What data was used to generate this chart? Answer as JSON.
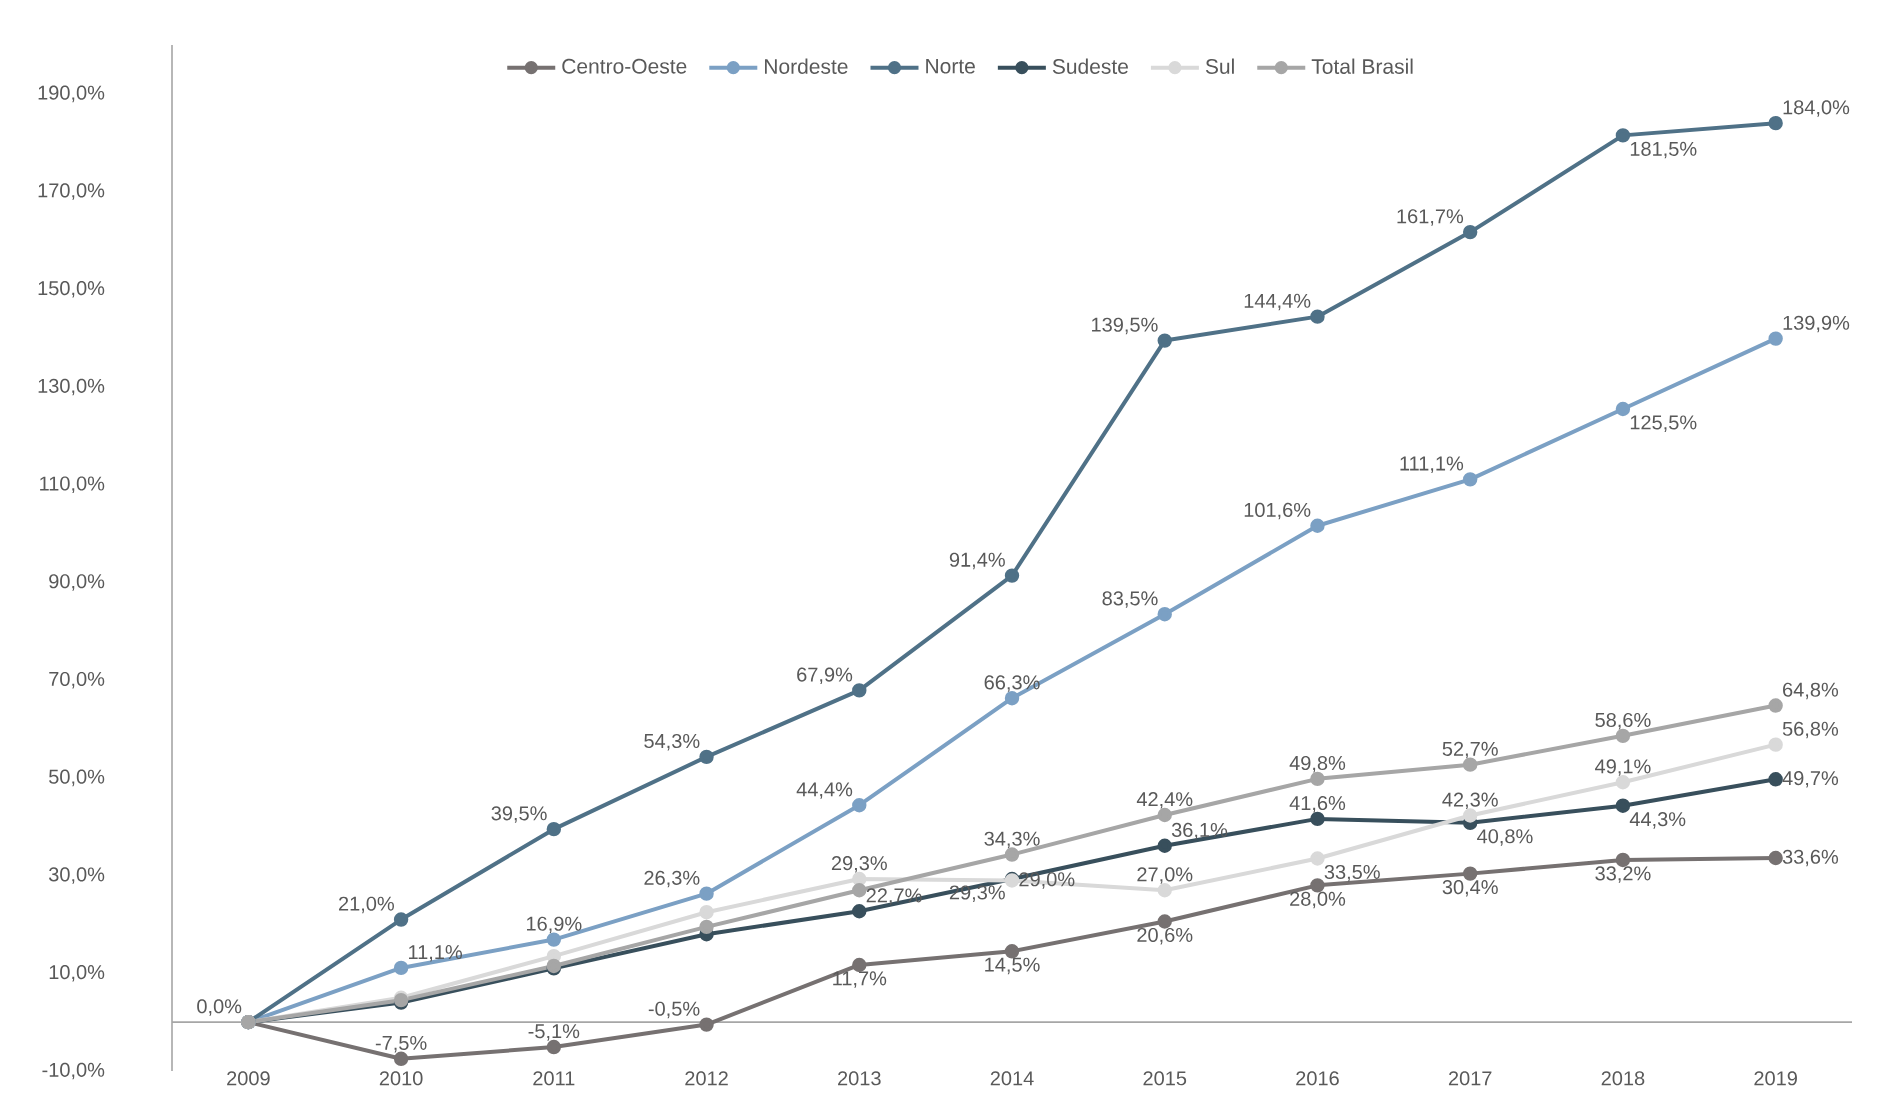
{
  "chart_data": {
    "type": "line",
    "categories": [
      "2009",
      "2010",
      "2011",
      "2012",
      "2013",
      "2014",
      "2015",
      "2016",
      "2017",
      "2018",
      "2019"
    ],
    "series": [
      {
        "name": "Centro-Oeste",
        "color": "#767171",
        "values": [
          0,
          -7.5,
          -5.1,
          -0.5,
          11.7,
          14.5,
          20.6,
          28.0,
          30.4,
          33.2,
          33.6
        ],
        "value_labels": [
          null,
          "-7,5%",
          "-5,1%",
          "-0,5%",
          "11,7%",
          "14,5%",
          "20,6%",
          "28,0%",
          "30,4%",
          "33,2%",
          "33,6%"
        ]
      },
      {
        "name": "Nordeste",
        "color": "#7ba0c4",
        "values": [
          0,
          11.1,
          16.9,
          26.3,
          44.4,
          66.3,
          83.5,
          101.6,
          111.1,
          125.5,
          139.9
        ],
        "value_labels": [
          null,
          "11,1%",
          "16,9%",
          "26,3%",
          "44,4%",
          "66,3%",
          "83,5%",
          "101,6%",
          "111,1%",
          "125,5%",
          "139,9%"
        ]
      },
      {
        "name": "Norte",
        "color": "#4f7187",
        "values": [
          0,
          21.0,
          39.5,
          54.3,
          67.9,
          91.4,
          139.5,
          144.4,
          161.7,
          181.5,
          184.0
        ],
        "value_labels": [
          "0,0%",
          "21,0%",
          "39,5%",
          "54,3%",
          "67,9%",
          "91,4%",
          "139,5%",
          "144,4%",
          "161,7%",
          "181,5%",
          "184,0%"
        ]
      },
      {
        "name": "Sudeste",
        "color": "#384f5c",
        "values": [
          0,
          4,
          11,
          18,
          22.7,
          29.3,
          36.1,
          41.6,
          40.8,
          44.3,
          49.7
        ],
        "value_labels": [
          null,
          null,
          null,
          null,
          "22,7%",
          "29,3%",
          "36,1%",
          "41,6%",
          "40,8%",
          "44,3%",
          "49,7%"
        ]
      },
      {
        "name": "Sul",
        "color": "#d9d9d9",
        "values": [
          0,
          5,
          13.5,
          22.5,
          29.3,
          29.0,
          27.0,
          33.5,
          42.3,
          49.1,
          56.8
        ],
        "value_labels": [
          null,
          null,
          null,
          null,
          "29,3%",
          "29,0%",
          "27,0%",
          "33,5%",
          "42,3%",
          "49,1%",
          "56,8%"
        ]
      },
      {
        "name": "Total Brasil",
        "color": "#a6a6a6",
        "values": [
          0,
          4.5,
          11.5,
          19.5,
          27,
          34.3,
          42.4,
          49.8,
          52.7,
          58.6,
          64.8
        ],
        "value_labels": [
          null,
          null,
          null,
          null,
          null,
          "34,3%",
          "42,4%",
          "49,8%",
          "52,7%",
          "58,6%",
          "64,8%"
        ]
      }
    ],
    "ylim": [
      -10,
      200
    ],
    "yticks": [
      {
        "value": -10,
        "label": "-10,0%"
      },
      {
        "value": 10,
        "label": "10,0%"
      },
      {
        "value": 30,
        "label": "30,0%"
      },
      {
        "value": 50,
        "label": "50,0%"
      },
      {
        "value": 70,
        "label": "70,0%"
      },
      {
        "value": 90,
        "label": "90,0%"
      },
      {
        "value": 110,
        "label": "110,0%"
      },
      {
        "value": 130,
        "label": "130,0%"
      },
      {
        "value": 150,
        "label": "150,0%"
      },
      {
        "value": 170,
        "label": "170,0%"
      },
      {
        "value": 190,
        "label": "190,0%"
      }
    ],
    "legend": "top",
    "grid": false,
    "marker": "circle",
    "line_style": "solid"
  }
}
